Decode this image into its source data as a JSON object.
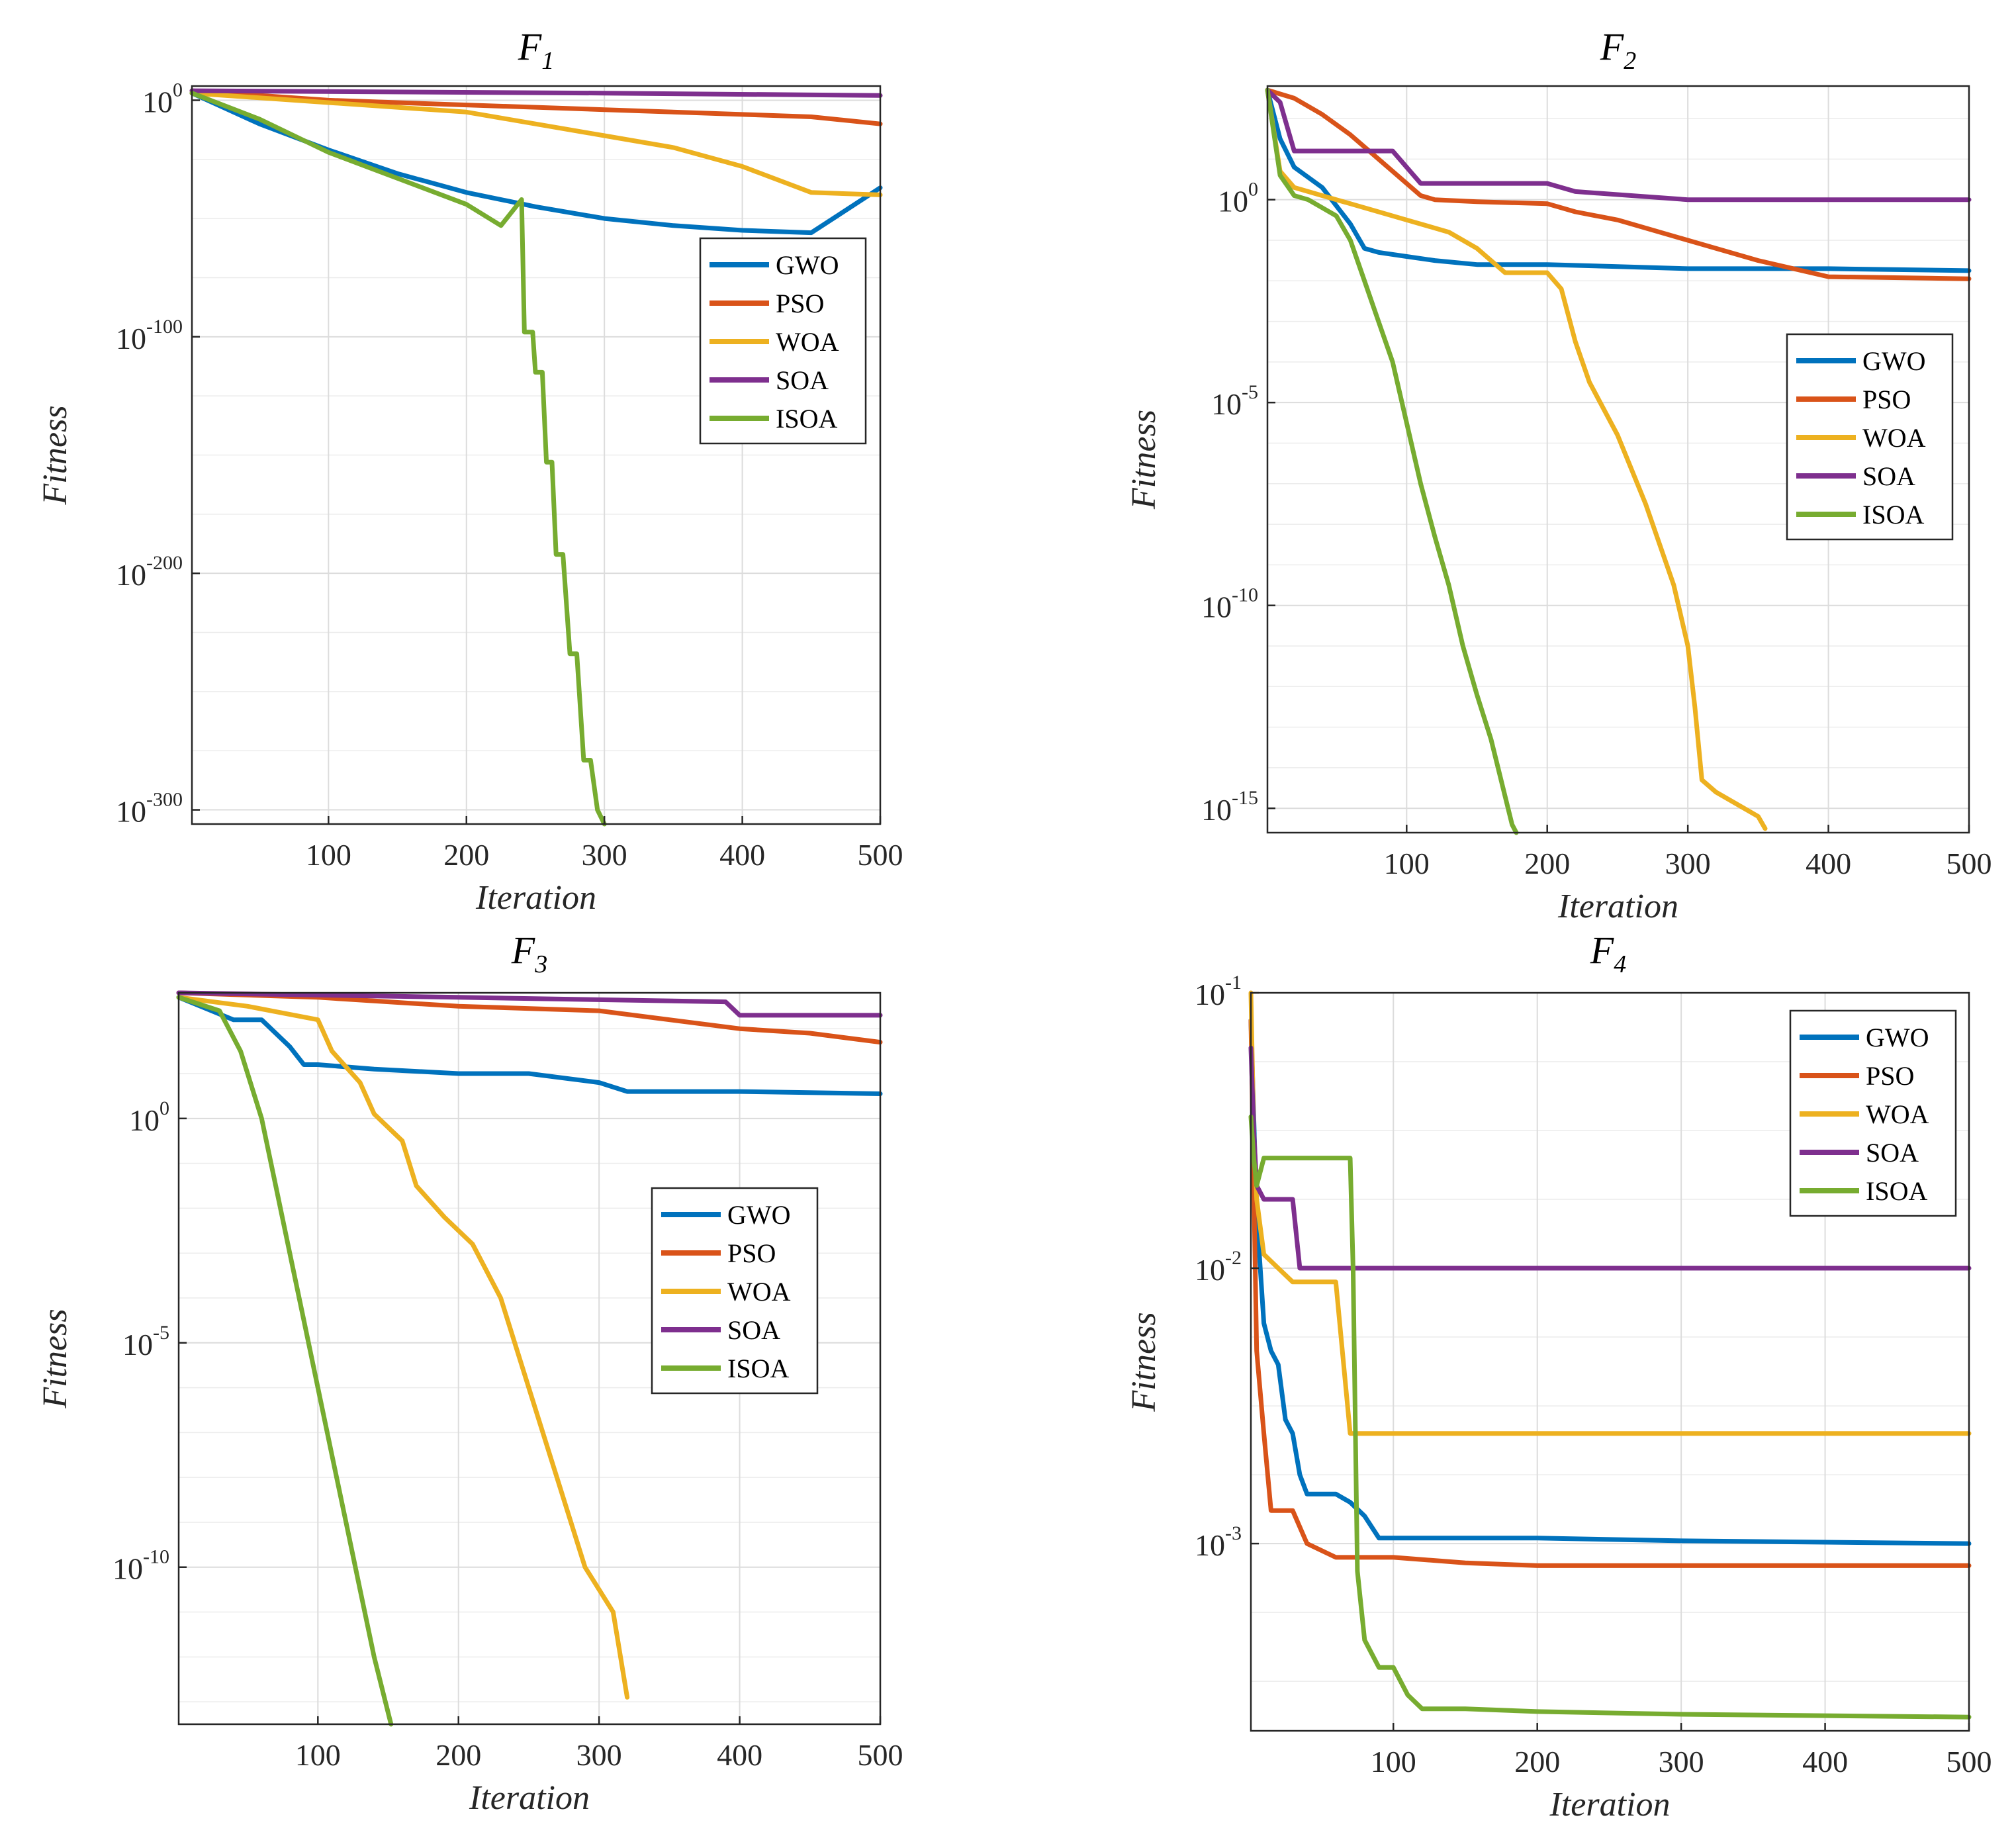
{
  "figure": {
    "description_layout": "2x2 grid of convergence curves",
    "colors": {
      "GWO": "#0072BD",
      "PSO": "#D95319",
      "WOA": "#EDB120",
      "SOA": "#7E2F8E",
      "ISOA": "#77AC30"
    }
  },
  "chart_data": [
    {
      "type": "line",
      "title": "F",
      "title_sub": "1",
      "xlabel": "Iteration",
      "ylabel": "Fitness",
      "yscale": "log",
      "xlim": [
        1,
        500
      ],
      "ylim_exp": [
        -306,
        6
      ],
      "xticks": [
        100,
        200,
        300,
        400,
        500
      ],
      "yticks_exp": [
        0,
        -100,
        -200,
        -300
      ],
      "legend": [
        "GWO",
        "PSO",
        "WOA",
        "SOA",
        "ISOA"
      ],
      "legend_position": "right-middle",
      "series": [
        {
          "name": "GWO",
          "x": [
            1,
            50,
            100,
            150,
            200,
            250,
            300,
            350,
            400,
            450,
            500
          ],
          "y_exp": [
            3,
            -10,
            -21,
            -31,
            -39,
            -45,
            -50,
            -53,
            -55,
            -56,
            -37
          ]
        },
        {
          "name": "PSO",
          "x": [
            1,
            100,
            200,
            300,
            400,
            450,
            500
          ],
          "y_exp": [
            4,
            0,
            -2,
            -4,
            -6,
            -7,
            -10
          ]
        },
        {
          "name": "WOA",
          "x": [
            1,
            100,
            200,
            250,
            300,
            350,
            400,
            450,
            500
          ],
          "y_exp": [
            3,
            -1,
            -5,
            -10,
            -15,
            -20,
            -28,
            -39,
            -40
          ]
        },
        {
          "name": "SOA",
          "x": [
            1,
            300,
            500
          ],
          "y_exp": [
            4,
            3,
            2
          ]
        },
        {
          "name": "ISOA",
          "x": [
            1,
            50,
            100,
            150,
            200,
            225,
            240,
            242,
            248,
            250,
            255,
            258,
            262,
            265,
            270,
            275,
            280,
            285,
            290,
            295,
            300
          ],
          "y_exp": [
            3,
            -8,
            -22,
            -33,
            -44,
            -53,
            -42,
            -98,
            -98,
            -115,
            -115,
            -153,
            -153,
            -192,
            -192,
            -234,
            -234,
            -279,
            -279,
            -300,
            -306
          ]
        }
      ]
    },
    {
      "type": "line",
      "title": "F",
      "title_sub": "2",
      "xlabel": "Iteration",
      "ylabel": "Fitness",
      "yscale": "log",
      "xlim": [
        1,
        500
      ],
      "ylim_exp": [
        -15.6,
        2.8
      ],
      "xticks": [
        100,
        200,
        300,
        400,
        500
      ],
      "yticks_exp": [
        0,
        -5,
        -10,
        -15
      ],
      "legend": [
        "GWO",
        "PSO",
        "WOA",
        "SOA",
        "ISOA"
      ],
      "legend_position": "right-middle",
      "series": [
        {
          "name": "GWO",
          "x": [
            1,
            10,
            20,
            40,
            60,
            70,
            80,
            100,
            120,
            150,
            200,
            250,
            300,
            400,
            500
          ],
          "y_exp": [
            2.7,
            1.5,
            0.8,
            0.3,
            -0.6,
            -1.2,
            -1.3,
            -1.4,
            -1.5,
            -1.6,
            -1.6,
            -1.65,
            -1.7,
            -1.7,
            -1.75
          ]
        },
        {
          "name": "PSO",
          "x": [
            1,
            20,
            40,
            60,
            80,
            100,
            110,
            120,
            150,
            200,
            220,
            250,
            300,
            350,
            400,
            500
          ],
          "y_exp": [
            2.7,
            2.5,
            2.1,
            1.6,
            1.0,
            0.4,
            0.1,
            0.0,
            -0.05,
            -0.1,
            -0.3,
            -0.5,
            -1.0,
            -1.5,
            -1.9,
            -1.95
          ]
        },
        {
          "name": "WOA",
          "x": [
            1,
            10,
            20,
            50,
            80,
            100,
            130,
            150,
            170,
            200,
            210,
            220,
            230,
            250,
            270,
            290,
            300,
            305,
            310,
            320,
            340,
            350,
            355
          ],
          "y_exp": [
            2.7,
            0.7,
            0.3,
            0.0,
            -0.3,
            -0.5,
            -0.8,
            -1.2,
            -1.8,
            -1.8,
            -2.2,
            -3.5,
            -4.5,
            -5.8,
            -7.5,
            -9.5,
            -11,
            -12.5,
            -14.3,
            -14.6,
            -15,
            -15.2,
            -15.5
          ]
        },
        {
          "name": "SOA",
          "x": [
            1,
            10,
            20,
            40,
            60,
            90,
            110,
            130,
            150,
            200,
            220,
            300,
            500
          ],
          "y_exp": [
            2.7,
            2.4,
            1.2,
            1.2,
            1.2,
            1.2,
            0.4,
            0.4,
            0.4,
            0.4,
            0.2,
            0.0,
            0.0
          ]
        },
        {
          "name": "ISOA",
          "x": [
            1,
            10,
            20,
            30,
            40,
            50,
            60,
            70,
            80,
            90,
            100,
            110,
            120,
            130,
            140,
            150,
            160,
            170,
            175,
            178
          ],
          "y_exp": [
            2.7,
            0.6,
            0.1,
            0.0,
            -0.2,
            -0.4,
            -1.0,
            -2.0,
            -3.0,
            -4.0,
            -5.5,
            -7.0,
            -8.3,
            -9.5,
            -11,
            -12.2,
            -13.3,
            -14.7,
            -15.4,
            -15.6
          ]
        }
      ]
    },
    {
      "type": "line",
      "title": "F",
      "title_sub": "3",
      "xlabel": "Iteration",
      "ylabel": "Fitness",
      "yscale": "log",
      "xlim": [
        1,
        500
      ],
      "ylim_exp": [
        -13.5,
        2.8
      ],
      "xticks": [
        100,
        200,
        300,
        400,
        500
      ],
      "yticks_exp": [
        0,
        -5,
        -10
      ],
      "legend": [
        "GWO",
        "PSO",
        "WOA",
        "SOA",
        "ISOA"
      ],
      "legend_position": "right-middle",
      "series": [
        {
          "name": "GWO",
          "x": [
            1,
            40,
            60,
            80,
            90,
            100,
            140,
            200,
            250,
            300,
            320,
            400,
            500
          ],
          "y_exp": [
            2.7,
            2.2,
            2.2,
            1.6,
            1.2,
            1.2,
            1.1,
            1.0,
            1.0,
            0.8,
            0.6,
            0.6,
            0.55
          ]
        },
        {
          "name": "PSO",
          "x": [
            1,
            100,
            200,
            300,
            400,
            450,
            500
          ],
          "y_exp": [
            2.8,
            2.7,
            2.5,
            2.4,
            2.0,
            1.9,
            1.7
          ]
        },
        {
          "name": "WOA",
          "x": [
            1,
            50,
            100,
            110,
            130,
            140,
            160,
            170,
            190,
            210,
            230,
            250,
            270,
            290,
            310,
            320
          ],
          "y_exp": [
            2.7,
            2.5,
            2.2,
            1.5,
            0.8,
            0.1,
            -0.5,
            -1.5,
            -2.2,
            -2.8,
            -4.0,
            -6.0,
            -8.0,
            -10.0,
            -11.0,
            -12.9
          ]
        },
        {
          "name": "SOA",
          "x": [
            1,
            200,
            390,
            400,
            500
          ],
          "y_exp": [
            2.8,
            2.7,
            2.6,
            2.3,
            2.3
          ]
        },
        {
          "name": "ISOA",
          "x": [
            1,
            30,
            45,
            60,
            70,
            80,
            90,
            100,
            110,
            120,
            130,
            140,
            148,
            152
          ],
          "y_exp": [
            2.7,
            2.4,
            1.5,
            0.0,
            -1.5,
            -3.0,
            -4.5,
            -6.0,
            -7.5,
            -9.0,
            -10.5,
            -12.0,
            -13.0,
            -13.5
          ]
        }
      ]
    },
    {
      "type": "line",
      "title": "F",
      "title_sub": "4",
      "xlabel": "Iteration",
      "ylabel": "Fitness",
      "yscale": "log",
      "xlim": [
        1,
        500
      ],
      "ylim_exp": [
        -3.68,
        -1.0
      ],
      "xticks": [
        100,
        200,
        300,
        400,
        500
      ],
      "yticks_exp": [
        -1,
        -2,
        -3
      ],
      "legend": [
        "GWO",
        "PSO",
        "WOA",
        "SOA",
        "ISOA"
      ],
      "legend_position": "top-right",
      "series": [
        {
          "name": "GWO",
          "x": [
            1,
            5,
            10,
            15,
            20,
            25,
            30,
            35,
            40,
            50,
            60,
            70,
            80,
            90,
            100,
            200,
            300,
            500
          ],
          "y_exp": [
            -1.1,
            -1.8,
            -2.2,
            -2.3,
            -2.35,
            -2.55,
            -2.6,
            -2.75,
            -2.82,
            -2.82,
            -2.82,
            -2.85,
            -2.9,
            -2.98,
            -2.98,
            -2.98,
            -2.99,
            -3.0
          ]
        },
        {
          "name": "PSO",
          "x": [
            1,
            5,
            10,
            15,
            20,
            30,
            40,
            60,
            70,
            80,
            100,
            150,
            200,
            300,
            500
          ],
          "y_exp": [
            -1.1,
            -2.3,
            -2.6,
            -2.88,
            -2.88,
            -2.88,
            -3.0,
            -3.05,
            -3.05,
            -3.05,
            -3.05,
            -3.07,
            -3.08,
            -3.08,
            -3.08
          ]
        },
        {
          "name": "WOA",
          "x": [
            1,
            3,
            5,
            10,
            20,
            30,
            40,
            60,
            70,
            500
          ],
          "y_exp": [
            -1.0,
            -1.5,
            -1.75,
            -1.95,
            -2.0,
            -2.05,
            -2.05,
            -2.05,
            -2.6,
            -2.6
          ]
        },
        {
          "name": "SOA",
          "x": [
            1,
            3,
            5,
            10,
            20,
            30,
            35,
            500
          ],
          "y_exp": [
            -1.2,
            -1.5,
            -1.7,
            -1.75,
            -1.75,
            -1.75,
            -2.0,
            -2.0
          ]
        },
        {
          "name": "ISOA",
          "x": [
            1,
            3,
            5,
            10,
            30,
            60,
            70,
            72,
            75,
            80,
            90,
            100,
            110,
            120,
            150,
            200,
            300,
            500
          ],
          "y_exp": [
            -1.45,
            -1.6,
            -1.7,
            -1.6,
            -1.6,
            -1.6,
            -1.6,
            -2.0,
            -3.1,
            -3.35,
            -3.45,
            -3.45,
            -3.55,
            -3.6,
            -3.6,
            -3.61,
            -3.62,
            -3.63
          ]
        }
      ]
    }
  ]
}
